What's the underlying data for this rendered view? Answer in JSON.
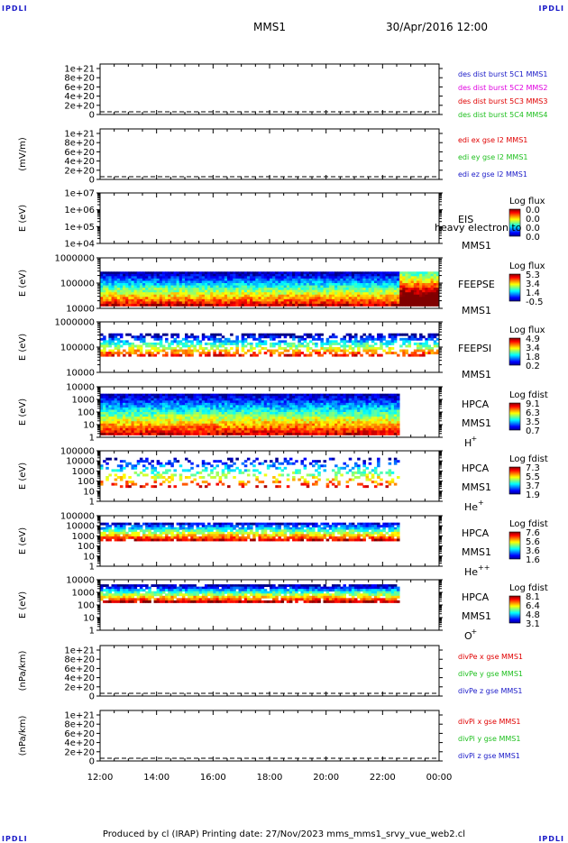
{
  "header": {
    "corner_label": "IPDLI",
    "spacecraft": "MMS1",
    "datetime": "30/Apr/2016 12:00"
  },
  "footer": {
    "text": "Produced by cl (IRAP)   Printing date: 27/Nov/2023   mms_mms1_srvy_vue_web2.cl"
  },
  "colors": {
    "blue": "#1a1ac8",
    "magenta": "#e000e0",
    "red": "#e00000",
    "green": "#20c020"
  },
  "chart_data": {
    "type": "heatmap",
    "x_ticks": [
      "12:00",
      "14:00",
      "16:00",
      "18:00",
      "20:00",
      "22:00",
      "00:00"
    ],
    "panels": [
      {
        "kind": "line",
        "ylabel": "",
        "y_ticks": [
          "1e+21",
          "8e+20",
          "6e+20",
          "4e+20",
          "2e+20",
          "0"
        ],
        "legend": [
          {
            "text": "des dist burst 5C1 MMS1",
            "color": "#1a1ac8"
          },
          {
            "text": "des dist burst 5C2 MMS2",
            "color": "#e000e0"
          },
          {
            "text": "des dist burst 5C3 MMS3",
            "color": "#e00000"
          },
          {
            "text": "des dist burst 5C4 MMS4",
            "color": "#20c020"
          }
        ]
      },
      {
        "kind": "line",
        "ylabel": "(mV/m)",
        "y_ticks": [
          "1e+21",
          "8e+20",
          "6e+20",
          "4e+20",
          "2e+20",
          "0"
        ],
        "legend": [
          {
            "text": "edi ex gse l2 MMS1",
            "color": "#e00000"
          },
          {
            "text": "edi ey gse l2 MMS1",
            "color": "#20c020"
          },
          {
            "text": "edi ez gse l2 MMS1",
            "color": "#1a1ac8"
          }
        ]
      },
      {
        "kind": "spec",
        "ylabel": "E (eV)",
        "y_ticks": [
          "1e+07",
          "1e+06",
          "1e+05",
          "1e+04"
        ],
        "instrument": "EIS",
        "sc": "MMS1",
        "species": "",
        "overlay": "heavy electron to",
        "cb_title": "Log flux",
        "cb_values": [
          "0.0",
          "0.0",
          "0.0",
          "0.0"
        ],
        "data_end": 0,
        "band_lo": 0,
        "band_hi": 0,
        "density": 0
      },
      {
        "kind": "spec",
        "ylabel": "E (eV)",
        "y_ticks": [
          "1000000",
          "100000",
          "10000"
        ],
        "instrument": "FEEPSE",
        "sc": "MMS1",
        "species": "",
        "cb_title": "Log flux",
        "cb_values": [
          "5.3",
          "3.4",
          "1.4",
          "-0.5"
        ],
        "data_end": 1.0,
        "band_lo": 0.1,
        "band_hi": 0.75,
        "density": 1.0
      },
      {
        "kind": "spec",
        "ylabel": "E (eV)",
        "y_ticks": [
          "1000000",
          "100000",
          "10000"
        ],
        "instrument": "FEEPSI",
        "sc": "MMS1",
        "species": "",
        "cb_title": "Log flux",
        "cb_values": [
          "4.9",
          "3.4",
          "1.8",
          "0.2"
        ],
        "data_end": 1.0,
        "band_lo": 0.35,
        "band_hi": 0.78,
        "density": 0.6
      },
      {
        "kind": "spec",
        "ylabel": "E (eV)",
        "y_ticks": [
          "10000",
          "1000",
          "100",
          "10",
          "1"
        ],
        "instrument": "HPCA",
        "sc": "MMS1",
        "species": "H",
        "sup": "+",
        "cb_title": "Log fdist",
        "cb_values": [
          "9.1",
          "6.3",
          "3.5",
          "0.7"
        ],
        "data_end": 0.88,
        "band_lo": 0.1,
        "band_hi": 0.9,
        "density": 1.0
      },
      {
        "kind": "spec",
        "ylabel": "E (eV)",
        "y_ticks": [
          "100000",
          "10000",
          "1000",
          "100",
          "10",
          "1"
        ],
        "instrument": "HPCA",
        "sc": "MMS1",
        "species": "He",
        "sup": "+",
        "cb_title": "Log fdist",
        "cb_values": [
          "7.3",
          "5.5",
          "3.7",
          "1.9"
        ],
        "data_end": 0.88,
        "band_lo": 0.3,
        "band_hi": 0.9,
        "density": 0.3
      },
      {
        "kind": "spec",
        "ylabel": "E (eV)",
        "y_ticks": [
          "100000",
          "10000",
          "1000",
          "100",
          "10",
          "1"
        ],
        "instrument": "HPCA",
        "sc": "MMS1",
        "species": "He",
        "sup": "++",
        "cb_title": "Log fdist",
        "cb_values": [
          "7.6",
          "5.6",
          "3.6",
          "1.6"
        ],
        "data_end": 0.88,
        "band_lo": 0.55,
        "band_hi": 0.9,
        "density": 0.85
      },
      {
        "kind": "spec",
        "ylabel": "E (eV)",
        "y_ticks": [
          "10000",
          "1000",
          "100",
          "10",
          "1"
        ],
        "instrument": "HPCA",
        "sc": "MMS1",
        "species": "O",
        "sup": "+",
        "cb_title": "Log fdist",
        "cb_values": [
          "8.1",
          "6.4",
          "4.8",
          "3.1"
        ],
        "data_end": 0.88,
        "band_lo": 0.6,
        "band_hi": 0.92,
        "density": 0.9
      },
      {
        "kind": "line",
        "ylabel": "(nPa/km)",
        "y_ticks": [
          "1e+21",
          "8e+20",
          "6e+20",
          "4e+20",
          "2e+20",
          "0"
        ],
        "legend": [
          {
            "text": "divPe x gse MMS1",
            "color": "#e00000"
          },
          {
            "text": "divPe y gse MMS1",
            "color": "#20c020"
          },
          {
            "text": "divPe z gse MMS1",
            "color": "#1a1ac8"
          }
        ]
      },
      {
        "kind": "line",
        "ylabel": "(nPa/km)",
        "y_ticks": [
          "1e+21",
          "8e+20",
          "6e+20",
          "4e+20",
          "2e+20",
          "0"
        ],
        "legend": [
          {
            "text": "divPi x gse MMS1",
            "color": "#e00000"
          },
          {
            "text": "divPi y gse MMS1",
            "color": "#20c020"
          },
          {
            "text": "divPi z gse MMS1",
            "color": "#1a1ac8"
          }
        ]
      }
    ]
  }
}
